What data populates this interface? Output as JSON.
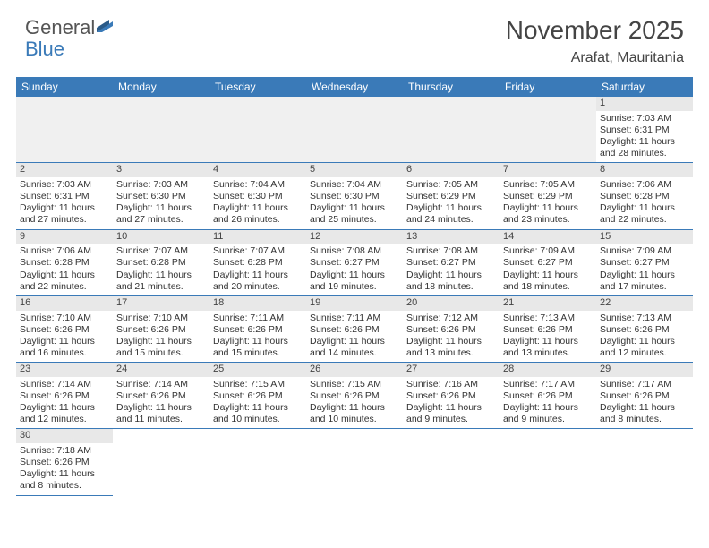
{
  "logo": {
    "text1": "General",
    "text2": "Blue"
  },
  "title": "November 2025",
  "location": "Arafat, Mauritania",
  "header_bg": "#3a7ab8",
  "weekday_color": "#ffffff",
  "daynum_bg": "#e8e8e8",
  "border_color": "#3a7ab8",
  "weekdays": [
    "Sunday",
    "Monday",
    "Tuesday",
    "Wednesday",
    "Thursday",
    "Friday",
    "Saturday"
  ],
  "weeks": [
    [
      {
        "empty": true
      },
      {
        "empty": true
      },
      {
        "empty": true
      },
      {
        "empty": true
      },
      {
        "empty": true
      },
      {
        "empty": true
      },
      {
        "n": "1",
        "sunrise": "7:03 AM",
        "sunset": "6:31 PM",
        "dl": "11 hours and 28 minutes."
      }
    ],
    [
      {
        "n": "2",
        "sunrise": "7:03 AM",
        "sunset": "6:31 PM",
        "dl": "11 hours and 27 minutes."
      },
      {
        "n": "3",
        "sunrise": "7:03 AM",
        "sunset": "6:30 PM",
        "dl": "11 hours and 27 minutes."
      },
      {
        "n": "4",
        "sunrise": "7:04 AM",
        "sunset": "6:30 PM",
        "dl": "11 hours and 26 minutes."
      },
      {
        "n": "5",
        "sunrise": "7:04 AM",
        "sunset": "6:30 PM",
        "dl": "11 hours and 25 minutes."
      },
      {
        "n": "6",
        "sunrise": "7:05 AM",
        "sunset": "6:29 PM",
        "dl": "11 hours and 24 minutes."
      },
      {
        "n": "7",
        "sunrise": "7:05 AM",
        "sunset": "6:29 PM",
        "dl": "11 hours and 23 minutes."
      },
      {
        "n": "8",
        "sunrise": "7:06 AM",
        "sunset": "6:28 PM",
        "dl": "11 hours and 22 minutes."
      }
    ],
    [
      {
        "n": "9",
        "sunrise": "7:06 AM",
        "sunset": "6:28 PM",
        "dl": "11 hours and 22 minutes."
      },
      {
        "n": "10",
        "sunrise": "7:07 AM",
        "sunset": "6:28 PM",
        "dl": "11 hours and 21 minutes."
      },
      {
        "n": "11",
        "sunrise": "7:07 AM",
        "sunset": "6:28 PM",
        "dl": "11 hours and 20 minutes."
      },
      {
        "n": "12",
        "sunrise": "7:08 AM",
        "sunset": "6:27 PM",
        "dl": "11 hours and 19 minutes."
      },
      {
        "n": "13",
        "sunrise": "7:08 AM",
        "sunset": "6:27 PM",
        "dl": "11 hours and 18 minutes."
      },
      {
        "n": "14",
        "sunrise": "7:09 AM",
        "sunset": "6:27 PM",
        "dl": "11 hours and 18 minutes."
      },
      {
        "n": "15",
        "sunrise": "7:09 AM",
        "sunset": "6:27 PM",
        "dl": "11 hours and 17 minutes."
      }
    ],
    [
      {
        "n": "16",
        "sunrise": "7:10 AM",
        "sunset": "6:26 PM",
        "dl": "11 hours and 16 minutes."
      },
      {
        "n": "17",
        "sunrise": "7:10 AM",
        "sunset": "6:26 PM",
        "dl": "11 hours and 15 minutes."
      },
      {
        "n": "18",
        "sunrise": "7:11 AM",
        "sunset": "6:26 PM",
        "dl": "11 hours and 15 minutes."
      },
      {
        "n": "19",
        "sunrise": "7:11 AM",
        "sunset": "6:26 PM",
        "dl": "11 hours and 14 minutes."
      },
      {
        "n": "20",
        "sunrise": "7:12 AM",
        "sunset": "6:26 PM",
        "dl": "11 hours and 13 minutes."
      },
      {
        "n": "21",
        "sunrise": "7:13 AM",
        "sunset": "6:26 PM",
        "dl": "11 hours and 13 minutes."
      },
      {
        "n": "22",
        "sunrise": "7:13 AM",
        "sunset": "6:26 PM",
        "dl": "11 hours and 12 minutes."
      }
    ],
    [
      {
        "n": "23",
        "sunrise": "7:14 AM",
        "sunset": "6:26 PM",
        "dl": "11 hours and 12 minutes."
      },
      {
        "n": "24",
        "sunrise": "7:14 AM",
        "sunset": "6:26 PM",
        "dl": "11 hours and 11 minutes."
      },
      {
        "n": "25",
        "sunrise": "7:15 AM",
        "sunset": "6:26 PM",
        "dl": "11 hours and 10 minutes."
      },
      {
        "n": "26",
        "sunrise": "7:15 AM",
        "sunset": "6:26 PM",
        "dl": "11 hours and 10 minutes."
      },
      {
        "n": "27",
        "sunrise": "7:16 AM",
        "sunset": "6:26 PM",
        "dl": "11 hours and 9 minutes."
      },
      {
        "n": "28",
        "sunrise": "7:17 AM",
        "sunset": "6:26 PM",
        "dl": "11 hours and 9 minutes."
      },
      {
        "n": "29",
        "sunrise": "7:17 AM",
        "sunset": "6:26 PM",
        "dl": "11 hours and 8 minutes."
      }
    ],
    [
      {
        "n": "30",
        "sunrise": "7:18 AM",
        "sunset": "6:26 PM",
        "dl": "11 hours and 8 minutes."
      },
      {
        "empty": true,
        "noborder": true
      },
      {
        "empty": true,
        "noborder": true
      },
      {
        "empty": true,
        "noborder": true
      },
      {
        "empty": true,
        "noborder": true
      },
      {
        "empty": true,
        "noborder": true
      },
      {
        "empty": true,
        "noborder": true
      }
    ]
  ],
  "labels": {
    "sunrise": "Sunrise:",
    "sunset": "Sunset:",
    "daylight": "Daylight:"
  }
}
